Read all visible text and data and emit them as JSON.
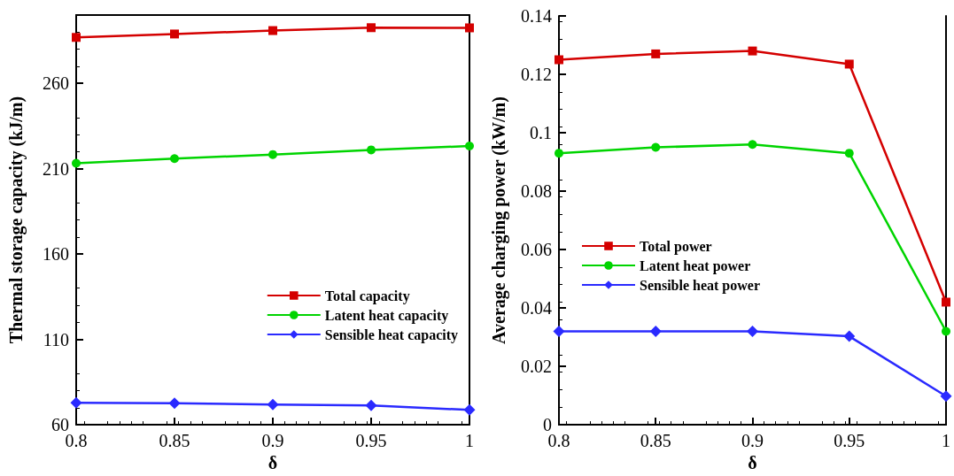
{
  "chart_data": [
    {
      "type": "line",
      "xlabel": "δ",
      "ylabel": "Thermal storage capacity (kJ/m)",
      "x": [
        0.8,
        0.85,
        0.9,
        0.95,
        1
      ],
      "xlim": [
        0.8,
        1
      ],
      "xticks": [
        0.8,
        0.85,
        0.9,
        0.95,
        1
      ],
      "ylim": [
        60,
        300
      ],
      "yticks": [
        60,
        110,
        160,
        210,
        260
      ],
      "legend": "bottom right",
      "grid": false,
      "series": [
        {
          "name": "Total capacity",
          "color": "#d40000",
          "marker": "square",
          "values": [
            286.9,
            288.9,
            290.9,
            292.6,
            292.5
          ]
        },
        {
          "name": "Latent heat capacity",
          "color": "#00d400",
          "marker": "circle",
          "values": [
            213.2,
            215.9,
            218.3,
            221.0,
            223.3
          ]
        },
        {
          "name": "Sensible heat capacity",
          "color": "#2a2aff",
          "marker": "diamond",
          "values": [
            72.9,
            72.6,
            71.9,
            71.3,
            68.7
          ]
        }
      ]
    },
    {
      "type": "line",
      "xlabel": "δ",
      "ylabel": "Average charging power (kW/m)",
      "x": [
        0.8,
        0.85,
        0.9,
        0.95,
        1
      ],
      "xlim": [
        0.8,
        1
      ],
      "xticks": [
        0.8,
        0.85,
        0.9,
        0.95,
        1
      ],
      "ylim": [
        0,
        0.14
      ],
      "yticks": [
        0,
        0.02,
        0.04,
        0.06,
        0.08,
        0.1,
        0.12,
        0.14
      ],
      "legend": "left",
      "grid": false,
      "series": [
        {
          "name": "Total power",
          "color": "#d40000",
          "marker": "square",
          "values": [
            0.125,
            0.127,
            0.128,
            0.1235,
            0.042
          ]
        },
        {
          "name": "Latent heat power",
          "color": "#00d400",
          "marker": "circle",
          "values": [
            0.093,
            0.095,
            0.096,
            0.093,
            0.032
          ]
        },
        {
          "name": "Sensible heat power",
          "color": "#2a2aff",
          "marker": "diamond",
          "values": [
            0.032,
            0.032,
            0.032,
            0.0303,
            0.0098
          ]
        }
      ]
    }
  ]
}
